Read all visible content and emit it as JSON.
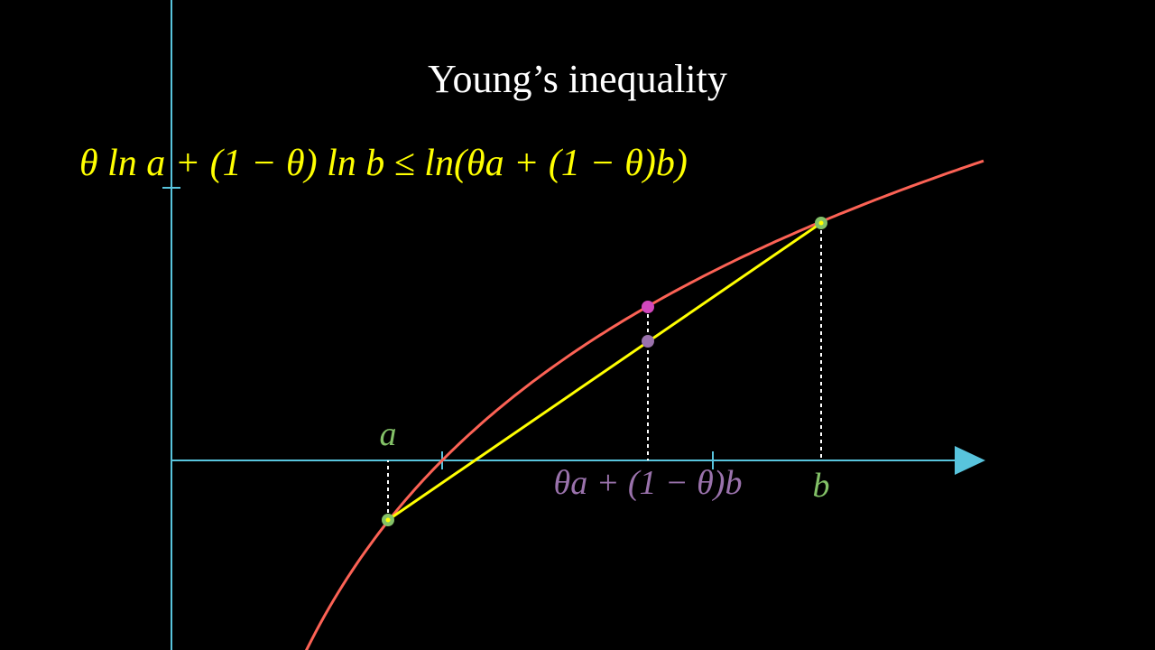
{
  "title": "Young’s inequality",
  "formula": "θ ln a + (1 − θ) ln b ≤ ln(θa + (1 − θ)b)",
  "labels": {
    "a": "a",
    "b": "b",
    "mix": "θa + (1 − θ)b"
  }
}
